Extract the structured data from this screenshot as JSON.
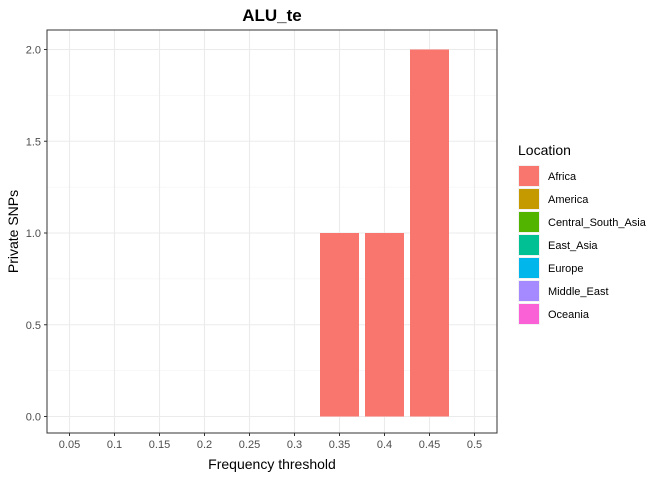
{
  "chart_data": {
    "type": "bar",
    "title": "ALU_te",
    "xlabel": "Frequency threshold",
    "ylabel": "Private SNPs",
    "x_ticks": [
      "0.05",
      "0.1",
      "0.15",
      "0.2",
      "0.25",
      "0.3",
      "0.35",
      "0.4",
      "0.45",
      "0.5"
    ],
    "y_ticks": [
      "0.0",
      "0.5",
      "1.0",
      "1.5",
      "2.0"
    ],
    "ylim": [
      0,
      2
    ],
    "grid": true,
    "legend": {
      "title": "Location",
      "position": "right",
      "entries": [
        {
          "label": "Africa",
          "color": "#F8766D"
        },
        {
          "label": "America",
          "color": "#C49A00"
        },
        {
          "label": "Central_South_Asia",
          "color": "#53B400"
        },
        {
          "label": "East_Asia",
          "color": "#00C094"
        },
        {
          "label": "Europe",
          "color": "#00B6EB"
        },
        {
          "label": "Middle_East",
          "color": "#A58AFF"
        },
        {
          "label": "Oceania",
          "color": "#FB61D7"
        }
      ]
    },
    "series": [
      {
        "name": "Africa",
        "color": "#F8766D",
        "points": [
          {
            "x": "0.35",
            "value": 1
          },
          {
            "x": "0.4",
            "value": 1
          },
          {
            "x": "0.45",
            "value": 2
          }
        ]
      }
    ]
  }
}
